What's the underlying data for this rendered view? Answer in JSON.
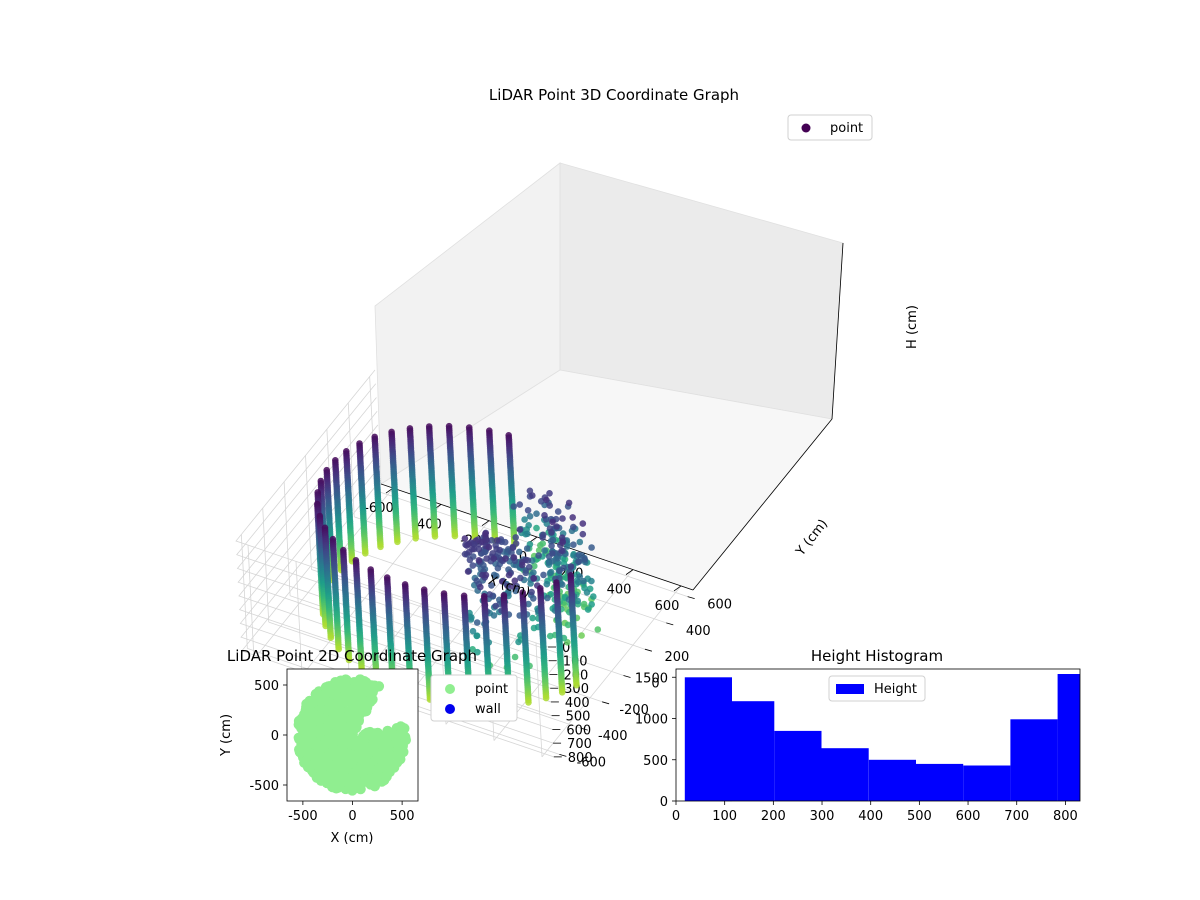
{
  "chart_data": [
    {
      "type": "scatter3d",
      "title": "LiDAR Point 3D Coordinate Graph",
      "xlabel": "X (cm)",
      "ylabel": "Y (cm)",
      "zlabel": "H (cm)",
      "xlim": [
        -650,
        650
      ],
      "ylim": [
        -650,
        650
      ],
      "zlim": [
        0,
        830
      ],
      "z_inverted": true,
      "xticks": [
        "-600",
        "-400",
        "-200",
        "0",
        "200",
        "400",
        "600"
      ],
      "yticks": [
        "-600",
        "-400",
        "-200",
        "0",
        "200",
        "400",
        "600"
      ],
      "zticks": [
        "0",
        "100",
        "200",
        "300",
        "400",
        "500",
        "600",
        "700",
        "800"
      ],
      "colormap": "viridis",
      "legend": {
        "entries": [
          "point"
        ],
        "placement": "upper-right",
        "color": "#440154"
      },
      "series": [
        {
          "name": "point",
          "shape": "partial cylinder wall (radius ≈ 550 cm, angles ≈ 90°–350°) with scattered interior points",
          "radius_cm": 550,
          "height_range_cm": [
            20,
            820
          ]
        }
      ]
    },
    {
      "type": "scatter",
      "title": "LiDAR Point 2D Coordinate Graph",
      "xlabel": "X (cm)",
      "ylabel": "Y (cm)",
      "xlim": [
        -660,
        660
      ],
      "ylim": [
        -660,
        660
      ],
      "xticks": [
        "-500",
        "0",
        "500"
      ],
      "yticks": [
        "-500",
        "0",
        "500"
      ],
      "legend": {
        "placement": "outside-right"
      },
      "series": [
        {
          "name": "point",
          "color": "#90ee90"
        },
        {
          "name": "wall",
          "color": "#0000ee"
        }
      ]
    },
    {
      "type": "bar",
      "title": "Height Histogram",
      "xlim": [
        0,
        830
      ],
      "ylim": [
        0,
        1600
      ],
      "xticks": [
        "0",
        "100",
        "200",
        "300",
        "400",
        "500",
        "600",
        "700",
        "800"
      ],
      "yticks": [
        "0",
        "500",
        "1000",
        "1500"
      ],
      "color": "#0000ff",
      "legend": {
        "entries": [
          "Height"
        ],
        "placement": "upper-center"
      },
      "bin_edges": [
        18,
        115,
        202,
        299,
        396,
        493,
        590,
        687,
        784,
        830
      ],
      "values": [
        1500,
        1210,
        850,
        640,
        500,
        450,
        430,
        990,
        1540
      ]
    }
  ]
}
